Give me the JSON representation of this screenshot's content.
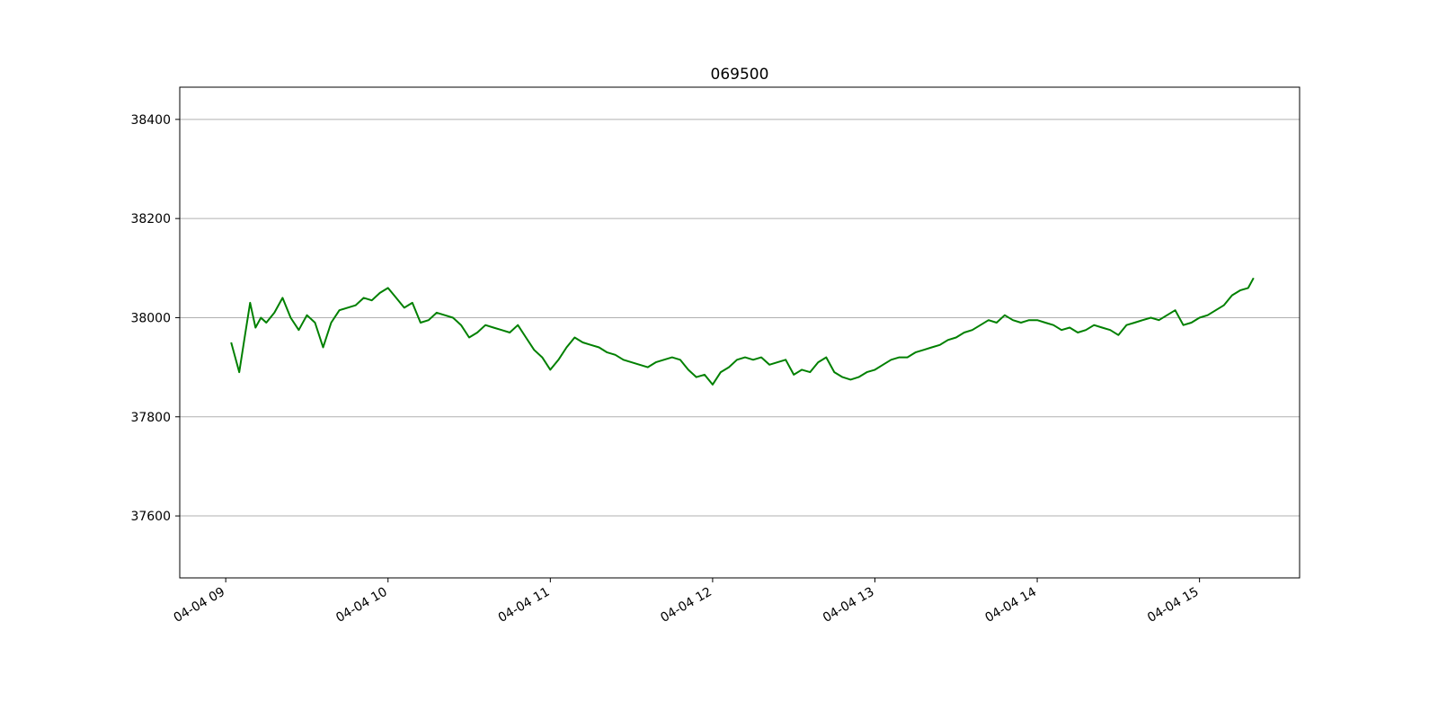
{
  "chart_data": {
    "type": "line",
    "title": "069500",
    "xlabel": "",
    "ylabel": "",
    "x_format": "MM-DD HH",
    "xlim": [
      "04-04 08:43",
      "04-04 15:37"
    ],
    "ylim": [
      37475,
      38465
    ],
    "y_ticks": [
      37600,
      37800,
      38000,
      38200,
      38400
    ],
    "x_ticks": [
      "04-04 09",
      "04-04 10",
      "04-04 11",
      "04-04 12",
      "04-04 13",
      "04-04 14",
      "04-04 15"
    ],
    "grid": "y",
    "legend": "none",
    "series": [
      {
        "color": "#008000",
        "x": [
          "04-04 09:02",
          "04-04 09:05",
          "04-04 09:07",
          "04-04 09:09",
          "04-04 09:11",
          "04-04 09:13",
          "04-04 09:15",
          "04-04 09:18",
          "04-04 09:21",
          "04-04 09:24",
          "04-04 09:27",
          "04-04 09:30",
          "04-04 09:33",
          "04-04 09:36",
          "04-04 09:39",
          "04-04 09:42",
          "04-04 09:45",
          "04-04 09:48",
          "04-04 09:51",
          "04-04 09:54",
          "04-04 09:57",
          "04-04 10:00",
          "04-04 10:03",
          "04-04 10:06",
          "04-04 10:09",
          "04-04 10:12",
          "04-04 10:15",
          "04-04 10:18",
          "04-04 10:21",
          "04-04 10:24",
          "04-04 10:27",
          "04-04 10:30",
          "04-04 10:33",
          "04-04 10:36",
          "04-04 10:39",
          "04-04 10:42",
          "04-04 10:45",
          "04-04 10:48",
          "04-04 10:51",
          "04-04 10:54",
          "04-04 10:57",
          "04-04 11:00",
          "04-04 11:03",
          "04-04 11:06",
          "04-04 11:09",
          "04-04 11:12",
          "04-04 11:15",
          "04-04 11:18",
          "04-04 11:21",
          "04-04 11:24",
          "04-04 11:27",
          "04-04 11:30",
          "04-04 11:33",
          "04-04 11:36",
          "04-04 11:39",
          "04-04 11:42",
          "04-04 11:45",
          "04-04 11:48",
          "04-04 11:51",
          "04-04 11:54",
          "04-04 11:57",
          "04-04 12:00",
          "04-04 12:03",
          "04-04 12:06",
          "04-04 12:09",
          "04-04 12:12",
          "04-04 12:15",
          "04-04 12:18",
          "04-04 12:21",
          "04-04 12:24",
          "04-04 12:27",
          "04-04 12:30",
          "04-04 12:33",
          "04-04 12:36",
          "04-04 12:39",
          "04-04 12:42",
          "04-04 12:45",
          "04-04 12:48",
          "04-04 12:51",
          "04-04 12:54",
          "04-04 12:57",
          "04-04 13:00",
          "04-04 13:03",
          "04-04 13:06",
          "04-04 13:09",
          "04-04 13:12",
          "04-04 13:15",
          "04-04 13:18",
          "04-04 13:21",
          "04-04 13:24",
          "04-04 13:27",
          "04-04 13:30",
          "04-04 13:33",
          "04-04 13:36",
          "04-04 13:39",
          "04-04 13:42",
          "04-04 13:45",
          "04-04 13:48",
          "04-04 13:51",
          "04-04 13:54",
          "04-04 13:57",
          "04-04 14:00",
          "04-04 14:03",
          "04-04 14:06",
          "04-04 14:09",
          "04-04 14:12",
          "04-04 14:15",
          "04-04 14:18",
          "04-04 14:21",
          "04-04 14:24",
          "04-04 14:27",
          "04-04 14:30",
          "04-04 14:33",
          "04-04 14:36",
          "04-04 14:39",
          "04-04 14:42",
          "04-04 14:45",
          "04-04 14:48",
          "04-04 14:51",
          "04-04 14:54",
          "04-04 14:57",
          "04-04 15:00",
          "04-04 15:03",
          "04-04 15:06",
          "04-04 15:09",
          "04-04 15:12",
          "04-04 15:15",
          "04-04 15:18",
          "04-04 15:20"
        ],
        "y": [
          37950,
          37890,
          37960,
          38030,
          37980,
          38000,
          37990,
          38010,
          38040,
          38000,
          37975,
          38005,
          37990,
          37940,
          37990,
          38015,
          38020,
          38025,
          38040,
          38035,
          38050,
          38060,
          38040,
          38020,
          38030,
          37990,
          37995,
          38010,
          38005,
          38000,
          37985,
          37960,
          37970,
          37985,
          37980,
          37975,
          37970,
          37985,
          37960,
          37935,
          37920,
          37895,
          37915,
          37940,
          37960,
          37950,
          37945,
          37940,
          37930,
          37925,
          37915,
          37910,
          37905,
          37900,
          37910,
          37915,
          37920,
          37915,
          37895,
          37880,
          37885,
          37865,
          37890,
          37900,
          37915,
          37920,
          37915,
          37920,
          37905,
          37910,
          37915,
          37885,
          37895,
          37890,
          37910,
          37920,
          37890,
          37880,
          37875,
          37880,
          37890,
          37895,
          37905,
          37915,
          37920,
          37920,
          37930,
          37935,
          37940,
          37945,
          37955,
          37960,
          37970,
          37975,
          37985,
          37995,
          37990,
          38005,
          37995,
          37990,
          37995,
          37995,
          37990,
          37985,
          37975,
          37980,
          37970,
          37975,
          37985,
          37980,
          37975,
          37965,
          37985,
          37990,
          37995,
          38000,
          37995,
          38005,
          38015,
          37985,
          37990,
          38000,
          38005,
          38015,
          38025,
          38045,
          38055,
          38060,
          38080
        ]
      }
    ]
  }
}
